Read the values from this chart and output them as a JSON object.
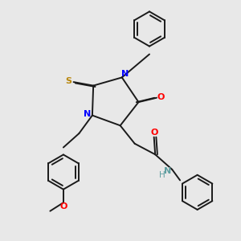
{
  "background_color": "#e8e8e8",
  "figsize": [
    3.0,
    3.0
  ],
  "dpi": 100,
  "bond_color": "#1a1a1a",
  "N_color": "#0000ff",
  "O_color": "#ff0000",
  "S_color": "#b8860b",
  "NH_color": "#5f9ea0",
  "lw": 1.4,
  "xlim": [
    0,
    10
  ],
  "ylim": [
    0,
    10
  ]
}
